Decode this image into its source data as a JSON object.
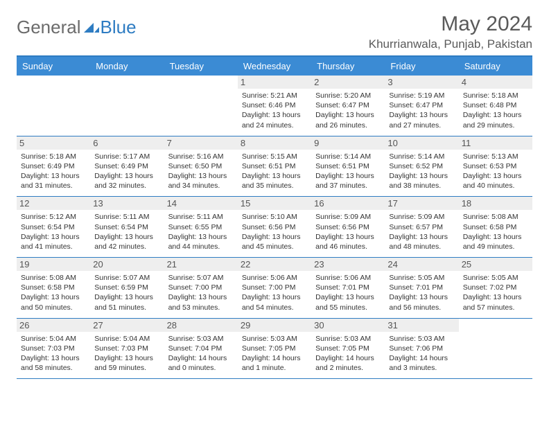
{
  "logo": {
    "text1": "General",
    "text2": "Blue"
  },
  "title": "May 2024",
  "location": "Khurrianwala, Punjab, Pakistan",
  "colors": {
    "header_bg": "#3b8bd4",
    "border": "#2e7cc2",
    "daynum_bg": "#eeeeee",
    "text_gray": "#5a5a5a"
  },
  "weekdays": [
    "Sunday",
    "Monday",
    "Tuesday",
    "Wednesday",
    "Thursday",
    "Friday",
    "Saturday"
  ],
  "weeks": [
    [
      null,
      null,
      null,
      {
        "n": "1",
        "sr": "5:21 AM",
        "ss": "6:46 PM",
        "dl": "13 hours and 24 minutes."
      },
      {
        "n": "2",
        "sr": "5:20 AM",
        "ss": "6:47 PM",
        "dl": "13 hours and 26 minutes."
      },
      {
        "n": "3",
        "sr": "5:19 AM",
        "ss": "6:47 PM",
        "dl": "13 hours and 27 minutes."
      },
      {
        "n": "4",
        "sr": "5:18 AM",
        "ss": "6:48 PM",
        "dl": "13 hours and 29 minutes."
      }
    ],
    [
      {
        "n": "5",
        "sr": "5:18 AM",
        "ss": "6:49 PM",
        "dl": "13 hours and 31 minutes."
      },
      {
        "n": "6",
        "sr": "5:17 AM",
        "ss": "6:49 PM",
        "dl": "13 hours and 32 minutes."
      },
      {
        "n": "7",
        "sr": "5:16 AM",
        "ss": "6:50 PM",
        "dl": "13 hours and 34 minutes."
      },
      {
        "n": "8",
        "sr": "5:15 AM",
        "ss": "6:51 PM",
        "dl": "13 hours and 35 minutes."
      },
      {
        "n": "9",
        "sr": "5:14 AM",
        "ss": "6:51 PM",
        "dl": "13 hours and 37 minutes."
      },
      {
        "n": "10",
        "sr": "5:14 AM",
        "ss": "6:52 PM",
        "dl": "13 hours and 38 minutes."
      },
      {
        "n": "11",
        "sr": "5:13 AM",
        "ss": "6:53 PM",
        "dl": "13 hours and 40 minutes."
      }
    ],
    [
      {
        "n": "12",
        "sr": "5:12 AM",
        "ss": "6:54 PM",
        "dl": "13 hours and 41 minutes."
      },
      {
        "n": "13",
        "sr": "5:11 AM",
        "ss": "6:54 PM",
        "dl": "13 hours and 42 minutes."
      },
      {
        "n": "14",
        "sr": "5:11 AM",
        "ss": "6:55 PM",
        "dl": "13 hours and 44 minutes."
      },
      {
        "n": "15",
        "sr": "5:10 AM",
        "ss": "6:56 PM",
        "dl": "13 hours and 45 minutes."
      },
      {
        "n": "16",
        "sr": "5:09 AM",
        "ss": "6:56 PM",
        "dl": "13 hours and 46 minutes."
      },
      {
        "n": "17",
        "sr": "5:09 AM",
        "ss": "6:57 PM",
        "dl": "13 hours and 48 minutes."
      },
      {
        "n": "18",
        "sr": "5:08 AM",
        "ss": "6:58 PM",
        "dl": "13 hours and 49 minutes."
      }
    ],
    [
      {
        "n": "19",
        "sr": "5:08 AM",
        "ss": "6:58 PM",
        "dl": "13 hours and 50 minutes."
      },
      {
        "n": "20",
        "sr": "5:07 AM",
        "ss": "6:59 PM",
        "dl": "13 hours and 51 minutes."
      },
      {
        "n": "21",
        "sr": "5:07 AM",
        "ss": "7:00 PM",
        "dl": "13 hours and 53 minutes."
      },
      {
        "n": "22",
        "sr": "5:06 AM",
        "ss": "7:00 PM",
        "dl": "13 hours and 54 minutes."
      },
      {
        "n": "23",
        "sr": "5:06 AM",
        "ss": "7:01 PM",
        "dl": "13 hours and 55 minutes."
      },
      {
        "n": "24",
        "sr": "5:05 AM",
        "ss": "7:01 PM",
        "dl": "13 hours and 56 minutes."
      },
      {
        "n": "25",
        "sr": "5:05 AM",
        "ss": "7:02 PM",
        "dl": "13 hours and 57 minutes."
      }
    ],
    [
      {
        "n": "26",
        "sr": "5:04 AM",
        "ss": "7:03 PM",
        "dl": "13 hours and 58 minutes."
      },
      {
        "n": "27",
        "sr": "5:04 AM",
        "ss": "7:03 PM",
        "dl": "13 hours and 59 minutes."
      },
      {
        "n": "28",
        "sr": "5:03 AM",
        "ss": "7:04 PM",
        "dl": "14 hours and 0 minutes."
      },
      {
        "n": "29",
        "sr": "5:03 AM",
        "ss": "7:05 PM",
        "dl": "14 hours and 1 minute."
      },
      {
        "n": "30",
        "sr": "5:03 AM",
        "ss": "7:05 PM",
        "dl": "14 hours and 2 minutes."
      },
      {
        "n": "31",
        "sr": "5:03 AM",
        "ss": "7:06 PM",
        "dl": "14 hours and 3 minutes."
      },
      null
    ]
  ],
  "labels": {
    "sunrise": "Sunrise:",
    "sunset": "Sunset:",
    "daylight": "Daylight:"
  }
}
